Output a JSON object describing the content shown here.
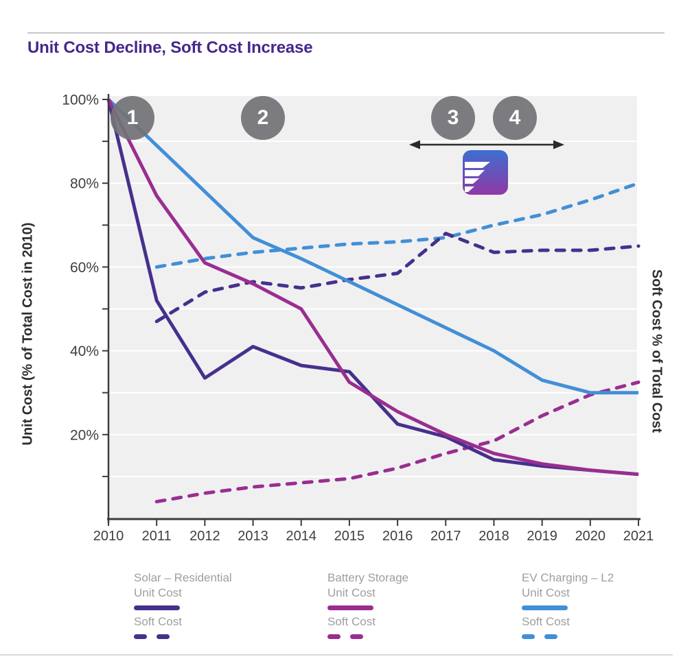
{
  "title": "Unit Cost Decline, Soft Cost Increase",
  "colors": {
    "title_purple": "#45288c",
    "solar": "#46308c",
    "battery": "#992e90",
    "ev": "#428fd6",
    "marker_gray": "#737377",
    "plot_bg": "#f0f0f1",
    "axis": "#3c3c3c",
    "tick_label": "#3f3f3f",
    "legend_text": "#9e9e9e",
    "logo_gradient_top": "#3d6ed0",
    "logo_gradient_bottom": "#9038a6"
  },
  "chart_data": {
    "type": "line",
    "x": [
      2010,
      2011,
      2012,
      2013,
      2014,
      2015,
      2016,
      2017,
      2018,
      2019,
      2020,
      2021
    ],
    "x_tick_labels": [
      "2010",
      "2011",
      "2012",
      "2013",
      "2014",
      "2015",
      "2016",
      "2017",
      "2018",
      "2019",
      "2020",
      "2021"
    ],
    "ylim": [
      0,
      100
    ],
    "y_tick_step": 10,
    "y_labeled_ticks": [
      20,
      40,
      60,
      80,
      100
    ],
    "y_tick_label_suffix": "%",
    "grid": "horizontal white gridlines on light gray plot background",
    "y_axis_left_title": "Unit Cost (% of Total Cost in 2010)",
    "y_axis_right_title": "Soft Cost % of Total Cost",
    "series": [
      {
        "name": "EV Charging – L2 Soft Cost",
        "style": "dashed",
        "color": "#428fd6",
        "values": [
          null,
          60,
          62,
          63.5,
          64.5,
          65.5,
          66,
          67,
          70,
          72.5,
          76,
          80
        ]
      },
      {
        "name": "Solar – Residential Soft Cost",
        "style": "dashed",
        "color": "#46308c",
        "values": [
          null,
          47,
          54,
          56.5,
          55,
          57,
          58.5,
          68,
          63.5,
          64,
          64,
          65
        ]
      },
      {
        "name": "Battery Storage Soft Cost",
        "style": "dashed",
        "color": "#992e90",
        "values": [
          null,
          4,
          6,
          7.5,
          8.5,
          9.5,
          12,
          15.5,
          18.5,
          24.5,
          29.5,
          32.5
        ]
      },
      {
        "name": "EV Charging – L2 Unit Cost",
        "style": "solid",
        "color": "#428fd6",
        "values": [
          100,
          89,
          78,
          67,
          62,
          56.5,
          51,
          45.5,
          40,
          33,
          30,
          30
        ]
      },
      {
        "name": "Solar – Residential Unit Cost",
        "style": "solid",
        "color": "#46308c",
        "values": [
          100,
          52,
          33.5,
          41,
          36.5,
          35,
          22.5,
          19.5,
          14,
          12.5,
          11.5,
          10.5
        ]
      },
      {
        "name": "Battery Storage Unit Cost",
        "style": "solid",
        "color": "#992e90",
        "values": [
          100,
          77,
          61,
          56,
          50,
          32.5,
          25.5,
          20,
          15.5,
          13,
          11.5,
          10.5
        ]
      }
    ]
  },
  "annotations": {
    "markers": [
      {
        "label": "1"
      },
      {
        "label": "2"
      },
      {
        "label": "3"
      },
      {
        "label": "4"
      }
    ],
    "arrow_note": "double-headed horizontal arrow spanning markers 3 and 4",
    "logo_note": "blue-to-purple gradient rounded square with white stripes"
  },
  "legend": {
    "groups": [
      {
        "name": "Solar – Residential",
        "unit_label": "Unit Cost",
        "soft_label": "Soft Cost",
        "color": "#46308c"
      },
      {
        "name": "Battery Storage",
        "unit_label": "Unit Cost",
        "soft_label": "Soft Cost",
        "color": "#992e90"
      },
      {
        "name": "EV Charging – L2",
        "unit_label": "Unit Cost",
        "soft_label": "Soft Cost",
        "color": "#428fd6"
      }
    ]
  }
}
